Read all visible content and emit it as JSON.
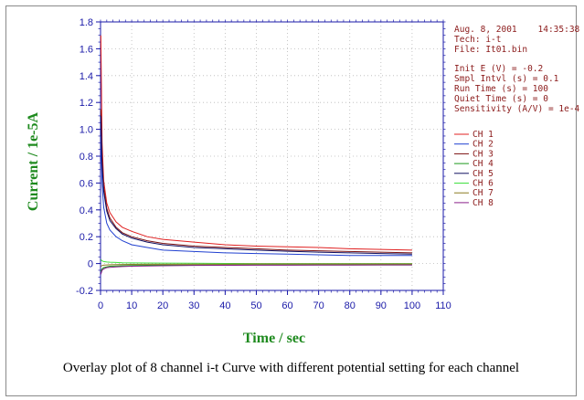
{
  "chart_data": {
    "type": "line",
    "xlabel": "Time / sec",
    "ylabel": "Current / 1e-5A",
    "xlim": [
      0,
      110
    ],
    "ylim": [
      -0.2,
      1.8
    ],
    "x_ticks": [
      0,
      10,
      20,
      30,
      40,
      50,
      60,
      70,
      80,
      90,
      100,
      110
    ],
    "y_ticks": [
      -0.2,
      0,
      0.2,
      0.4,
      0.6,
      0.8,
      1,
      1.2,
      1.4,
      1.6,
      1.8
    ],
    "x_tick_labels": [
      "0",
      "10",
      "20",
      "30",
      "40",
      "50",
      "60",
      "70",
      "80",
      "90",
      "100",
      "110"
    ],
    "y_tick_labels": [
      "-0.2",
      "0",
      "0.2",
      "0.4",
      "0.6",
      "0.8",
      "1.0",
      "1.2",
      "1.4",
      "1.6",
      "1.8"
    ],
    "grid": true,
    "legend_position": "right",
    "x": [
      0.1,
      0.5,
      1,
      2,
      3,
      5,
      7,
      10,
      15,
      20,
      30,
      40,
      50,
      60,
      70,
      80,
      90,
      100
    ],
    "series": [
      {
        "name": "CH 1",
        "color": "#e02020",
        "values": [
          1.7,
          0.9,
          0.62,
          0.45,
          0.38,
          0.31,
          0.27,
          0.24,
          0.2,
          0.18,
          0.16,
          0.14,
          0.13,
          0.125,
          0.12,
          0.11,
          0.105,
          0.1
        ]
      },
      {
        "name": "CH 2",
        "color": "#2040d0",
        "values": [
          0.95,
          0.6,
          0.42,
          0.3,
          0.25,
          0.2,
          0.17,
          0.14,
          0.12,
          0.1,
          0.09,
          0.08,
          0.075,
          0.07,
          0.065,
          0.06,
          0.06,
          0.06
        ]
      },
      {
        "name": "CH 3",
        "color": "#7a1010",
        "values": [
          1.15,
          0.78,
          0.57,
          0.41,
          0.34,
          0.27,
          0.23,
          0.2,
          0.17,
          0.15,
          0.13,
          0.12,
          0.11,
          0.1,
          0.095,
          0.09,
          0.085,
          0.08
        ]
      },
      {
        "name": "CH 4",
        "color": "#1a9a1a",
        "values": [
          -0.06,
          -0.04,
          -0.03,
          -0.025,
          -0.02,
          -0.018,
          -0.016,
          -0.015,
          -0.013,
          -0.012,
          -0.011,
          -0.01,
          -0.01,
          -0.01,
          -0.01,
          -0.01,
          -0.01,
          -0.01
        ]
      },
      {
        "name": "CH 5",
        "color": "#101060",
        "values": [
          1.1,
          0.74,
          0.54,
          0.39,
          0.32,
          0.26,
          0.22,
          0.19,
          0.16,
          0.14,
          0.12,
          0.11,
          0.1,
          0.092,
          0.085,
          0.08,
          0.075,
          0.07
        ]
      },
      {
        "name": "CH 6",
        "color": "#40e040",
        "values": [
          0.03,
          0.02,
          0.015,
          0.012,
          0.01,
          0.008,
          0.006,
          0.005,
          0.004,
          0.003,
          0.002,
          0.001,
          0.0,
          0.0,
          0.0,
          0.0,
          0.0,
          0.0
        ]
      },
      {
        "name": "CH 7",
        "color": "#8a7a20",
        "values": [
          -0.02,
          -0.015,
          -0.012,
          -0.01,
          -0.009,
          -0.008,
          -0.007,
          -0.006,
          -0.005,
          -0.005,
          -0.004,
          -0.004,
          -0.003,
          -0.003,
          -0.003,
          -0.003,
          -0.003,
          -0.003
        ]
      },
      {
        "name": "CH 8",
        "color": "#8a208a",
        "values": [
          -0.08,
          -0.05,
          -0.04,
          -0.03,
          -0.028,
          -0.025,
          -0.022,
          -0.02,
          -0.018,
          -0.016,
          -0.014,
          -0.013,
          -0.012,
          -0.012,
          -0.011,
          -0.011,
          -0.01,
          -0.01
        ]
      }
    ]
  },
  "info": {
    "date_line": "Aug. 8, 2001    14:35:38",
    "tech": "Tech: i-t",
    "file": "File: It01.bin",
    "params": [
      "Init E (V) = -0.2",
      "Smpl Intvl (s) = 0.1",
      "Run Time (s) = 100",
      "Quiet Time (s) = 0",
      "Sensitivity (A/V) = 1e-4"
    ]
  },
  "caption": "Overlay plot of 8 channel i-t Curve with different potential setting for each channel"
}
